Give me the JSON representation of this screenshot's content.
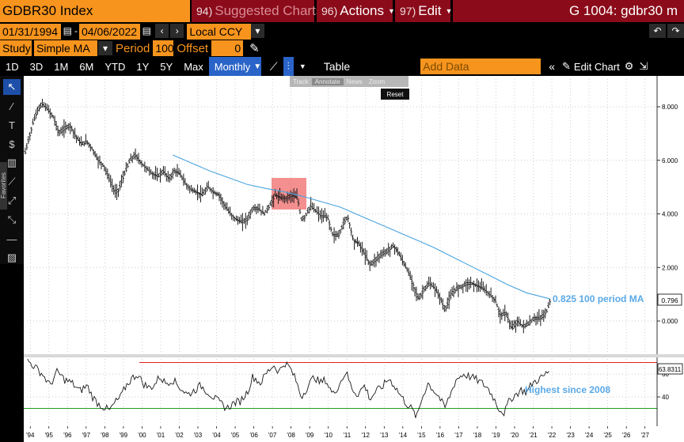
{
  "header": {
    "ticker": "GDBR30 Index",
    "suggested_num": "94)",
    "suggested_label": "Suggested Charts",
    "actions_num": "96)",
    "actions_label": "Actions",
    "edit_num": "97)",
    "edit_label": "Edit",
    "chart_id": "G 1004: gdbr30 m"
  },
  "range": {
    "start": "01/31/1994",
    "end": "04/06/2022",
    "currency": "Local CCY"
  },
  "study": {
    "label": "Study",
    "type": "Simple MA",
    "period_label": "Period",
    "period": "100",
    "offset_label": "Offset",
    "offset": "0"
  },
  "periods": [
    "1D",
    "3D",
    "1M",
    "6M",
    "YTD",
    "1Y",
    "5Y",
    "Max"
  ],
  "frequency": "Monthly",
  "table_label": "Table",
  "add_data_placeholder": "Add Data",
  "edit_chart_label": "Edit Chart",
  "float_toolbar": {
    "track": "Track",
    "annotate": "Annotate",
    "news": "News",
    "zoom": "Zoom",
    "reset": "Reset"
  },
  "colors": {
    "price": "#1a1a1a",
    "ma": "#4aa3df",
    "rsi": "#1a1a1a",
    "rsi_high": "#e02020",
    "rsi_low": "#1ea01e",
    "highlight": "#f06a6a",
    "annotation": "#5aa9e6",
    "accent": "#f7941d",
    "header_red": "#8b0b1a"
  },
  "chart_data": [
    {
      "type": "line",
      "yticks": [
        8,
        6,
        4,
        2,
        0
      ],
      "ytick_labels": [
        "8.000",
        "6.000",
        "4.000",
        "2.000",
        "0.000"
      ],
      "xlabels": [
        "'94",
        "'95",
        "'96",
        "'97",
        "'98",
        "'99",
        "'00",
        "'01",
        "'02",
        "'03",
        "'04",
        "'05",
        "'06",
        "'07",
        "'08",
        "'09",
        "'10",
        "'11",
        "'12",
        "'13",
        "'14",
        "'15",
        "'16",
        "'17",
        "'18",
        "'19",
        "'20",
        "'21",
        "'22",
        "'23",
        "'24",
        "'25",
        "'26",
        "'27"
      ],
      "series": [
        {
          "values": [
            [
              1994.08,
              6.3
            ],
            [
              1994.5,
              7.4
            ],
            [
              1994.75,
              7.9
            ],
            [
              1995.0,
              8.1
            ],
            [
              1995.3,
              7.9
            ],
            [
              1995.6,
              7.6
            ],
            [
              1995.9,
              7.0
            ],
            [
              1996.2,
              7.2
            ],
            [
              1996.5,
              7.3
            ],
            [
              1996.8,
              6.9
            ],
            [
              1997.1,
              6.6
            ],
            [
              1997.4,
              6.7
            ],
            [
              1997.7,
              6.4
            ],
            [
              1998.0,
              6.0
            ],
            [
              1998.3,
              5.8
            ],
            [
              1998.6,
              5.3
            ],
            [
              1998.9,
              4.8
            ],
            [
              1999.1,
              4.9
            ],
            [
              1999.4,
              5.5
            ],
            [
              1999.7,
              6.0
            ],
            [
              2000.0,
              6.2
            ],
            [
              2000.3,
              5.9
            ],
            [
              2000.6,
              5.7
            ],
            [
              2000.9,
              5.5
            ],
            [
              2001.2,
              5.4
            ],
            [
              2001.5,
              5.6
            ],
            [
              2001.8,
              5.3
            ],
            [
              2002.1,
              5.6
            ],
            [
              2002.4,
              5.5
            ],
            [
              2002.7,
              5.1
            ],
            [
              2003.0,
              4.9
            ],
            [
              2003.3,
              4.8
            ],
            [
              2003.6,
              4.7
            ],
            [
              2003.9,
              5.0
            ],
            [
              2004.2,
              4.8
            ],
            [
              2004.5,
              4.7
            ],
            [
              2004.8,
              4.3
            ],
            [
              2005.1,
              4.0
            ],
            [
              2005.4,
              3.8
            ],
            [
              2005.7,
              3.7
            ],
            [
              2006.0,
              3.8
            ],
            [
              2006.3,
              4.2
            ],
            [
              2006.6,
              4.2
            ],
            [
              2006.9,
              4.0
            ],
            [
              2007.2,
              4.3
            ],
            [
              2007.5,
              4.7
            ],
            [
              2007.8,
              4.6
            ],
            [
              2008.1,
              4.6
            ],
            [
              2008.4,
              4.7
            ],
            [
              2008.7,
              4.6
            ],
            [
              2008.9,
              3.8
            ],
            [
              2009.1,
              3.9
            ],
            [
              2009.4,
              4.3
            ],
            [
              2009.7,
              4.1
            ],
            [
              2010.0,
              3.9
            ],
            [
              2010.3,
              3.9
            ],
            [
              2010.6,
              3.2
            ],
            [
              2010.9,
              3.2
            ],
            [
              2011.2,
              3.7
            ],
            [
              2011.4,
              3.9
            ],
            [
              2011.7,
              3.0
            ],
            [
              2012.0,
              2.9
            ],
            [
              2012.3,
              2.5
            ],
            [
              2012.6,
              2.1
            ],
            [
              2012.9,
              2.3
            ],
            [
              2013.2,
              2.5
            ],
            [
              2013.5,
              2.6
            ],
            [
              2013.8,
              2.8
            ],
            [
              2014.0,
              2.7
            ],
            [
              2014.3,
              2.3
            ],
            [
              2014.6,
              1.9
            ],
            [
              2014.9,
              1.4
            ],
            [
              2015.2,
              0.8
            ],
            [
              2015.5,
              1.2
            ],
            [
              2015.8,
              1.4
            ],
            [
              2016.1,
              1.2
            ],
            [
              2016.4,
              0.8
            ],
            [
              2016.6,
              0.4
            ],
            [
              2016.9,
              0.9
            ],
            [
              2017.2,
              1.2
            ],
            [
              2017.5,
              1.3
            ],
            [
              2017.8,
              1.4
            ],
            [
              2018.1,
              1.4
            ],
            [
              2018.4,
              1.3
            ],
            [
              2018.7,
              1.2
            ],
            [
              2019.0,
              1.0
            ],
            [
              2019.3,
              0.8
            ],
            [
              2019.6,
              0.2
            ],
            [
              2019.9,
              0.3
            ],
            [
              2020.2,
              -0.3
            ],
            [
              2020.5,
              0.0
            ],
            [
              2020.8,
              -0.2
            ],
            [
              2021.1,
              -0.1
            ],
            [
              2021.4,
              0.1
            ],
            [
              2021.7,
              0.1
            ],
            [
              2021.9,
              0.2
            ],
            [
              2022.1,
              0.4
            ],
            [
              2022.27,
              0.8
            ]
          ]
        },
        {
          "name": "100 period MA",
          "values": [
            [
              2002.0,
              6.2
            ],
            [
              2003.0,
              5.9
            ],
            [
              2004.0,
              5.6
            ],
            [
              2005.0,
              5.35
            ],
            [
              2006.0,
              5.1
            ],
            [
              2007.0,
              4.95
            ],
            [
              2008.0,
              4.82
            ],
            [
              2009.0,
              4.65
            ],
            [
              2010.0,
              4.45
            ],
            [
              2011.0,
              4.25
            ],
            [
              2012.0,
              3.95
            ],
            [
              2013.0,
              3.65
            ],
            [
              2014.0,
              3.35
            ],
            [
              2015.0,
              3.05
            ],
            [
              2016.0,
              2.75
            ],
            [
              2017.0,
              2.4
            ],
            [
              2018.0,
              2.05
            ],
            [
              2019.0,
              1.7
            ],
            [
              2020.0,
              1.35
            ],
            [
              2021.0,
              1.05
            ],
            [
              2022.27,
              0.825
            ]
          ]
        }
      ],
      "last_value": "0.796",
      "annotation": "0.825 100 period MA"
    },
    {
      "type": "line",
      "yticks": [
        60,
        40
      ],
      "ytick_labels": [
        "60",
        "40"
      ],
      "hlines": [
        70,
        30
      ],
      "series": [
        {
          "values": [
            [
              1994.2,
              72
            ],
            [
              1994.6,
              66
            ],
            [
              1995.0,
              60
            ],
            [
              1995.4,
              50
            ],
            [
              1995.8,
              62
            ],
            [
              1996.2,
              55
            ],
            [
              1996.6,
              52
            ],
            [
              1997.0,
              45
            ],
            [
              1997.4,
              50
            ],
            [
              1997.7,
              40
            ],
            [
              1998.0,
              34
            ],
            [
              1998.3,
              31
            ],
            [
              1998.6,
              28
            ],
            [
              1998.9,
              35
            ],
            [
              1999.2,
              40
            ],
            [
              1999.5,
              50
            ],
            [
              1999.8,
              56
            ],
            [
              2000.1,
              60
            ],
            [
              2000.4,
              52
            ],
            [
              2000.7,
              48
            ],
            [
              2001.0,
              50
            ],
            [
              2001.3,
              58
            ],
            [
              2001.6,
              52
            ],
            [
              2002.0,
              55
            ],
            [
              2002.4,
              48
            ],
            [
              2002.8,
              42
            ],
            [
              2003.1,
              45
            ],
            [
              2003.5,
              50
            ],
            [
              2003.9,
              44
            ],
            [
              2004.3,
              38
            ],
            [
              2004.6,
              34
            ],
            [
              2004.9,
              30
            ],
            [
              2005.3,
              35
            ],
            [
              2005.6,
              36
            ],
            [
              2006.0,
              44
            ],
            [
              2006.3,
              58
            ],
            [
              2006.7,
              52
            ],
            [
              2007.0,
              60
            ],
            [
              2007.4,
              68
            ],
            [
              2007.7,
              62
            ],
            [
              2008.0,
              70
            ],
            [
              2008.3,
              65
            ],
            [
              2008.6,
              55
            ],
            [
              2008.9,
              40
            ],
            [
              2009.2,
              48
            ],
            [
              2009.6,
              58
            ],
            [
              2009.9,
              52
            ],
            [
              2010.2,
              55
            ],
            [
              2010.6,
              42
            ],
            [
              2010.9,
              50
            ],
            [
              2011.3,
              62
            ],
            [
              2011.6,
              48
            ],
            [
              2011.9,
              42
            ],
            [
              2012.3,
              50
            ],
            [
              2012.6,
              38
            ],
            [
              2012.9,
              45
            ],
            [
              2013.2,
              48
            ],
            [
              2013.6,
              56
            ],
            [
              2013.9,
              50
            ],
            [
              2014.2,
              42
            ],
            [
              2014.5,
              35
            ],
            [
              2014.8,
              30
            ],
            [
              2015.1,
              22
            ],
            [
              2015.4,
              40
            ],
            [
              2015.7,
              52
            ],
            [
              2016.0,
              46
            ],
            [
              2016.3,
              40
            ],
            [
              2016.6,
              30
            ],
            [
              2016.9,
              42
            ],
            [
              2017.2,
              55
            ],
            [
              2017.6,
              60
            ],
            [
              2017.9,
              58
            ],
            [
              2018.2,
              56
            ],
            [
              2018.6,
              52
            ],
            [
              2018.9,
              48
            ],
            [
              2019.2,
              40
            ],
            [
              2019.5,
              30
            ],
            [
              2019.8,
              26
            ],
            [
              2020.1,
              38
            ],
            [
              2020.4,
              42
            ],
            [
              2020.7,
              46
            ],
            [
              2021.0,
              44
            ],
            [
              2021.3,
              52
            ],
            [
              2021.6,
              55
            ],
            [
              2021.9,
              58
            ],
            [
              2022.27,
              63.8
            ]
          ]
        }
      ],
      "last_value": "63.8311",
      "annotation": "Highest since 2008"
    }
  ]
}
